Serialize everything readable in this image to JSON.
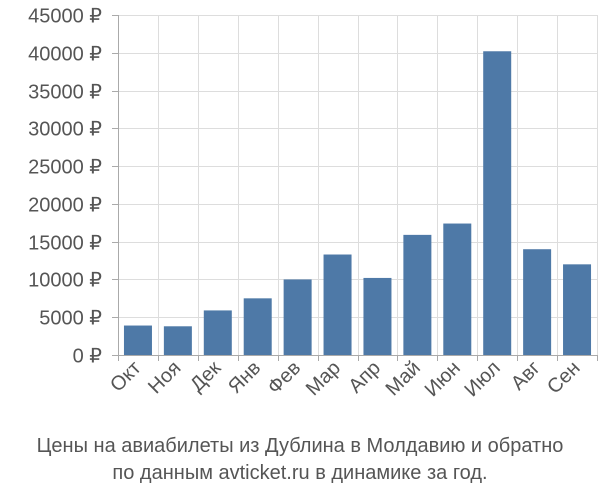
{
  "chart_data": {
    "type": "bar",
    "categories": [
      "Окт",
      "Ноя",
      "Дек",
      "Янв",
      "Фев",
      "Мар",
      "Апр",
      "Май",
      "Июн",
      "Июл",
      "Авг",
      "Сен"
    ],
    "values": [
      3900,
      3800,
      5900,
      7500,
      10000,
      13300,
      10200,
      15900,
      17400,
      40200,
      14000,
      12000
    ],
    "ylim": [
      0,
      45000
    ],
    "yticks": [
      0,
      5000,
      10000,
      15000,
      20000,
      25000,
      30000,
      35000,
      40000,
      45000
    ],
    "ytick_labels": [
      "0 ₽",
      "5000 ₽",
      "10000 ₽",
      "15000 ₽",
      "20000 ₽",
      "25000 ₽",
      "30000 ₽",
      "35000 ₽",
      "40000 ₽",
      "45000 ₽"
    ],
    "grid": true,
    "bar_color": "#4e79a7"
  },
  "caption": {
    "line1": "Цены на авиабилеты из Дублина в Молдавию и обратно",
    "line2": "по данным avticket.ru в динамике за год."
  }
}
